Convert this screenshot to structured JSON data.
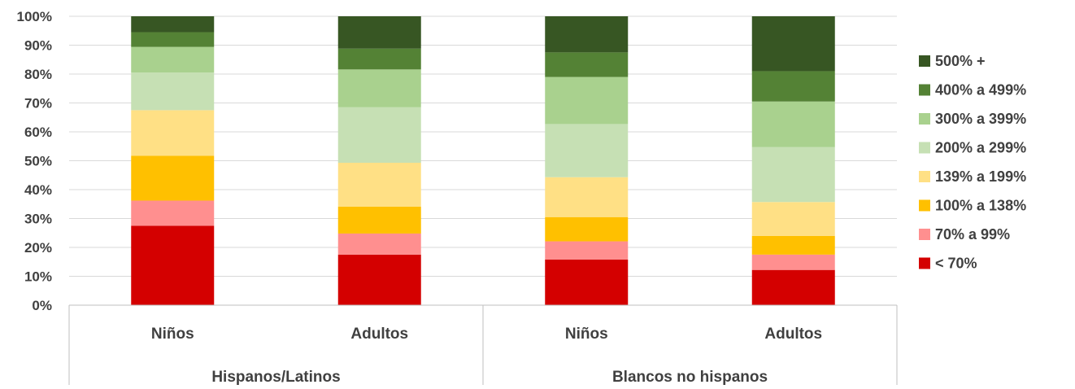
{
  "chart_data": {
    "type": "bar",
    "stacked": true,
    "ylim": [
      0,
      100
    ],
    "yticks": [
      "0%",
      "10%",
      "20%",
      "30%",
      "40%",
      "50%",
      "60%",
      "70%",
      "80%",
      "90%",
      "100%"
    ],
    "categories": [
      "Niños",
      "Adultos",
      "Niños",
      "Adultos"
    ],
    "groups": [
      {
        "label": "Hispanos/Latinos",
        "categories": [
          "Niños",
          "Adultos"
        ]
      },
      {
        "label": "Blancos no hispanos",
        "categories": [
          "Niños",
          "Adultos"
        ]
      }
    ],
    "grid": true,
    "legend_position": "right",
    "series": [
      {
        "name": "< 70%",
        "color": "#d40000",
        "values": [
          27.5,
          17.5,
          15.8,
          12.2
        ]
      },
      {
        "name": "70% a 99%",
        "color": "#ff8f8f",
        "values": [
          8.7,
          7.3,
          6.3,
          5.3
        ]
      },
      {
        "name": "100% a 138%",
        "color": "#ffc000",
        "values": [
          15.5,
          9.3,
          8.4,
          6.5
        ]
      },
      {
        "name": "139% a 199%",
        "color": "#ffe085",
        "values": [
          15.8,
          15.2,
          13.8,
          11.7
        ]
      },
      {
        "name": "200% a 299%",
        "color": "#c6e0b4",
        "values": [
          13.0,
          19.2,
          18.4,
          19.0
        ]
      },
      {
        "name": "300% a 399%",
        "color": "#a9d18e",
        "values": [
          8.9,
          13.1,
          16.3,
          15.8
        ]
      },
      {
        "name": "400% a 499%",
        "color": "#548235",
        "values": [
          5.1,
          7.2,
          8.5,
          10.5
        ]
      },
      {
        "name": "500% +",
        "color": "#375623",
        "values": [
          5.5,
          11.2,
          12.5,
          19.0
        ]
      }
    ]
  }
}
